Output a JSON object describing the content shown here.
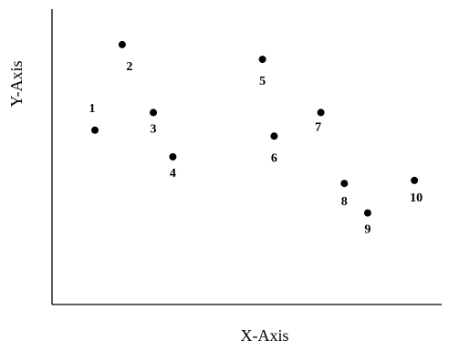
{
  "chart_data": {
    "type": "scatter",
    "title": "",
    "xlabel": "X-Axis",
    "ylabel": "Y-Axis",
    "grid": false,
    "legend": "none",
    "xlim": [
      0,
      100
    ],
    "ylim": [
      0,
      100
    ],
    "point_color": "#000000",
    "points": [
      {
        "label": "1",
        "x": 11,
        "y": 59
      },
      {
        "label": "2",
        "x": 18,
        "y": 88
      },
      {
        "label": "3",
        "x": 26,
        "y": 65
      },
      {
        "label": "4",
        "x": 31,
        "y": 50
      },
      {
        "label": "5",
        "x": 54,
        "y": 83
      },
      {
        "label": "6",
        "x": 57,
        "y": 57
      },
      {
        "label": "7",
        "x": 69,
        "y": 65
      },
      {
        "label": "8",
        "x": 75,
        "y": 41
      },
      {
        "label": "9",
        "x": 81,
        "y": 31
      },
      {
        "label": "10",
        "x": 93,
        "y": 42
      }
    ]
  }
}
